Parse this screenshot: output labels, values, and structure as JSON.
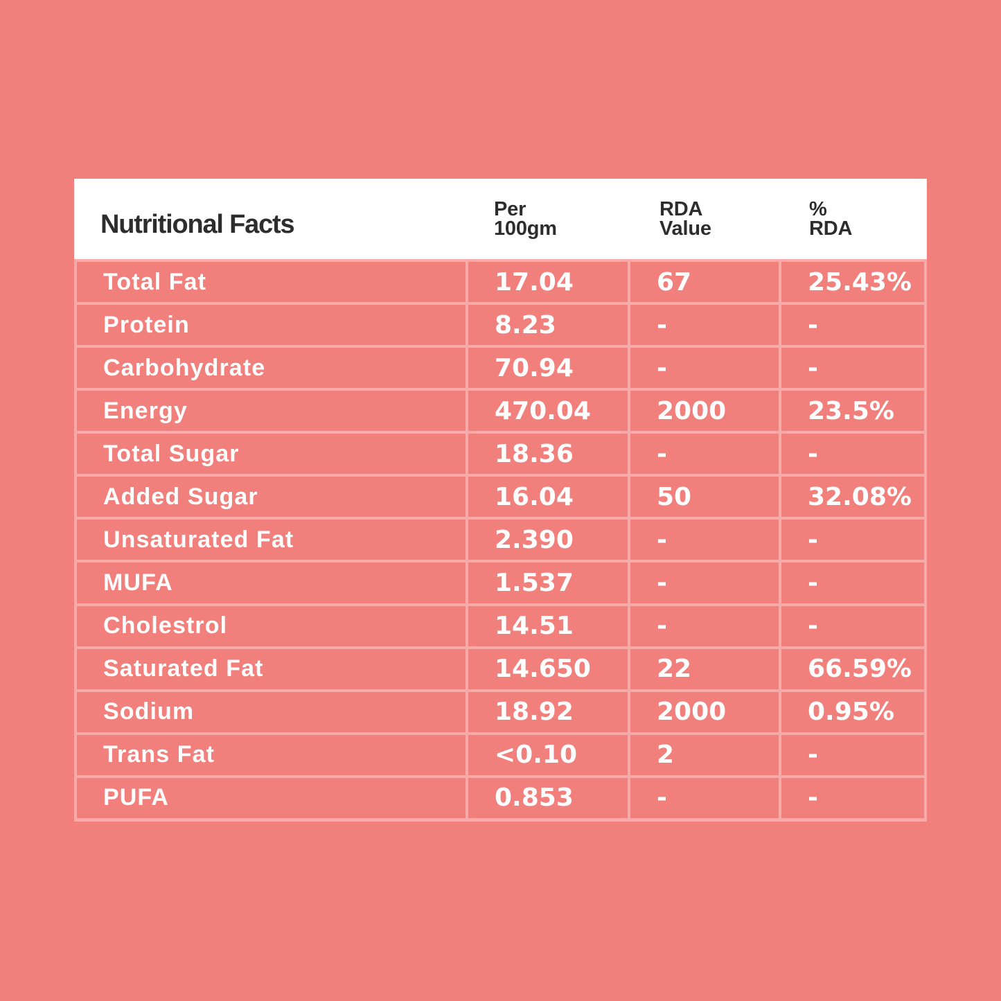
{
  "page": {
    "background_color": "#f1807c",
    "grid_line_color": "rgba(255,255,255,0.34)",
    "header_text_color": "#2d2d2d",
    "body_text_color": "#ffffff"
  },
  "table": {
    "title": "Nutritional Facts",
    "columns": [
      {
        "line1": "Per",
        "line2": "100gm"
      },
      {
        "line1": "RDA",
        "line2": "Value"
      },
      {
        "line1": "%",
        "line2": "RDA"
      }
    ],
    "rows": [
      {
        "label": "Total Fat",
        "per_100gm": "17.04",
        "rda_value": "67",
        "percent_rda": "25.43%"
      },
      {
        "label": "Protein",
        "per_100gm": "8.23",
        "rda_value": "-",
        "percent_rda": "-"
      },
      {
        "label": "Carbohydrate",
        "per_100gm": "70.94",
        "rda_value": "-",
        "percent_rda": "-"
      },
      {
        "label": "Energy",
        "per_100gm": "470.04",
        "rda_value": "2000",
        "percent_rda": "23.5%"
      },
      {
        "label": "Total Sugar",
        "per_100gm": "18.36",
        "rda_value": "-",
        "percent_rda": "-"
      },
      {
        "label": "Added Sugar",
        "per_100gm": "16.04",
        "rda_value": "50",
        "percent_rda": "32.08%"
      },
      {
        "label": "Unsaturated Fat",
        "per_100gm": "2.390",
        "rda_value": "-",
        "percent_rda": "-"
      },
      {
        "label": "MUFA",
        "per_100gm": "1.537",
        "rda_value": "-",
        "percent_rda": "-"
      },
      {
        "label": "Cholestrol",
        "per_100gm": "14.51",
        "rda_value": "-",
        "percent_rda": "-"
      },
      {
        "label": "Saturated Fat",
        "per_100gm": "14.650",
        "rda_value": "22",
        "percent_rda": "66.59%"
      },
      {
        "label": "Sodium",
        "per_100gm": "18.92",
        "rda_value": "2000",
        "percent_rda": "0.95%"
      },
      {
        "label": "Trans Fat",
        "per_100gm": "<0.10",
        "rda_value": "2",
        "percent_rda": "-"
      },
      {
        "label": "PUFA",
        "per_100gm": "0.853",
        "rda_value": "-",
        "percent_rda": "-"
      }
    ]
  }
}
